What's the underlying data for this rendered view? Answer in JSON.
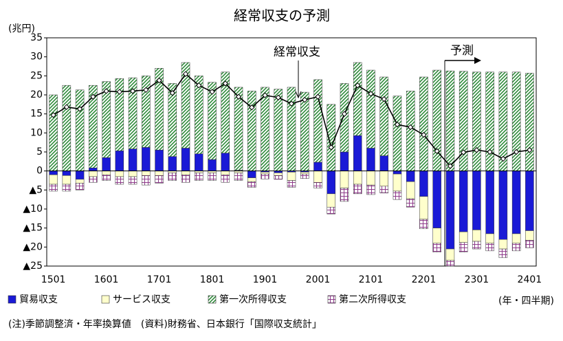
{
  "chart_data": {
    "type": "stacked_bar_line",
    "title": "経常収支の予測",
    "y_unit_label": "(兆円)",
    "x_unit_label": "(年・四半期)",
    "footnote": "(注)季節調整済・年率換算値　(資料)財務省、日本銀行「国際収支統計」",
    "forecast_label": "予測",
    "categories": [
      "1501",
      null,
      null,
      null,
      "1601",
      null,
      null,
      null,
      "1701",
      null,
      null,
      null,
      "1801",
      null,
      null,
      null,
      "1901",
      null,
      null,
      null,
      "2001",
      null,
      null,
      null,
      "2101",
      null,
      null,
      null,
      "2201",
      null,
      null,
      null,
      "2301",
      null,
      null,
      null,
      "2401"
    ],
    "series": [
      {
        "name": "貿易収支",
        "color": "#1a1ad6",
        "pattern": "solid",
        "values": [
          -1,
          -1.2,
          -2.2,
          0.8,
          3.5,
          5.3,
          5.8,
          6.2,
          5.5,
          3.8,
          6,
          4.5,
          3,
          4.7,
          0.2,
          -1.8,
          -0.3,
          -0.5,
          -0.3,
          -0.3,
          2.3,
          -6,
          5,
          9.3,
          6,
          4,
          -0.8,
          -2.8,
          -6.7,
          -15,
          -20.5,
          -16,
          -15.5,
          -16.5,
          -18,
          -16.5,
          -15.7
        ]
      },
      {
        "name": "サービス収支",
        "color": "#ffffcc",
        "pattern": "solid",
        "values": [
          -2.5,
          -2.3,
          -1,
          -1.5,
          -1,
          -1.5,
          -1.5,
          -1.2,
          -1.2,
          -0.5,
          -1,
          -0.5,
          -0.5,
          -1,
          -0.5,
          -1,
          -0.5,
          -0.7,
          -2.2,
          -0.5,
          -3,
          -3.5,
          -4.5,
          -3.5,
          -3.7,
          -4,
          -4.5,
          -4.5,
          -6,
          -4,
          -3,
          -2.8,
          -3,
          -2.5,
          -2.5,
          -2.5,
          -2.5
        ]
      },
      {
        "name": "第一次所得収支",
        "color": "#2e8b3a",
        "pattern": "hatch",
        "values": [
          20,
          22.5,
          21.3,
          21.7,
          20,
          19,
          18.7,
          18.8,
          21.5,
          19.2,
          22.5,
          20.5,
          20.3,
          21.3,
          21.8,
          21,
          22,
          21.5,
          22,
          20.7,
          21.7,
          17.5,
          18,
          19.2,
          20.5,
          20.7,
          19.7,
          21,
          24.7,
          26.5,
          26.3,
          26.2,
          26,
          26,
          26,
          26,
          25.7
        ]
      },
      {
        "name": "第二次所得収支",
        "color": "#8e3a8a",
        "pattern": "grid",
        "values": [
          -1.8,
          -1.8,
          -1.8,
          -1.5,
          -1.5,
          -2,
          -2,
          -2.5,
          -2,
          -2,
          -2,
          -2,
          -2,
          -2,
          -2,
          -1.5,
          -1.3,
          -1,
          -1.8,
          -1.2,
          -1.5,
          -1.8,
          -3.5,
          -2.5,
          -2.5,
          -1.8,
          -2.2,
          -2.2,
          -2.5,
          -2.3,
          -1.5,
          -2.5,
          -2,
          -2,
          -2.3,
          -2,
          -2
        ]
      }
    ],
    "line": {
      "name": "経常収支",
      "color": "#000000",
      "values": [
        14.7,
        16.8,
        16.3,
        19.5,
        21,
        20.8,
        21,
        21.3,
        23.8,
        20.5,
        25.5,
        22.5,
        20.8,
        23,
        19.5,
        16.7,
        19.9,
        19.3,
        17.7,
        18.7,
        19.5,
        6.2,
        15,
        22.5,
        20.3,
        18.9,
        12.2,
        11.5,
        9.5,
        5.2,
        1.3,
        4.9,
        5.5,
        5,
        3.2,
        5,
        5.5
      ]
    },
    "ylim": [
      -25,
      35
    ],
    "yticks": [
      {
        "value": -25,
        "label": "▲25"
      },
      {
        "value": -20,
        "label": "▲20"
      },
      {
        "value": -15,
        "label": "▲15"
      },
      {
        "value": -10,
        "label": "▲10"
      },
      {
        "value": -5,
        "label": "▲5"
      },
      0,
      5,
      10,
      15,
      20,
      25,
      30,
      35
    ],
    "grid": false
  }
}
